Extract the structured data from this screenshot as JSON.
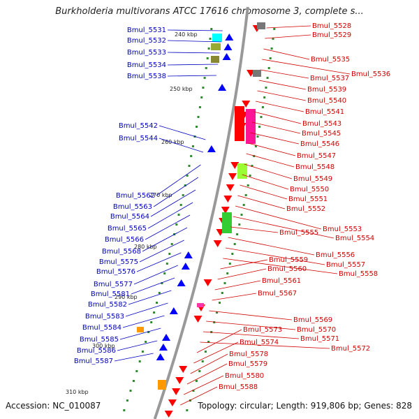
{
  "title": "Burkholderia multivorans ATCC 17616 chromosome 3, complete s...",
  "footer": {
    "accession": "Accession: NC_010087",
    "topology": "Topology: circular; Length: 919,806 bp; Genes: 828"
  },
  "colors": {
    "left_label": "#0000c0",
    "right_label": "#d00000",
    "outer_strand": "#0000ff",
    "inner_strand": "#ff0000",
    "backbone": "#999999"
  },
  "ticks": [
    "240 kbp",
    "250 kbp",
    "260 kbp",
    "270 kbp",
    "280 kbp",
    "290 kbp",
    "300 kbp",
    "310 kbp"
  ],
  "left_labels": [
    "Bmul_5531",
    "Bmul_5532",
    "Bmul_5533",
    "Bmul_5534",
    "Bmul_5538",
    "Bmul_5542",
    "Bmul_5544",
    "Bmul_5562",
    "Bmul_5563",
    "Bmul_5564",
    "Bmul_5565",
    "Bmul_5566",
    "Bmul_5568",
    "Bmul_5575",
    "Bmul_5576",
    "Bmul_5577",
    "Bmul_5581",
    "Bmul_5582",
    "Bmul_5583",
    "Bmul_5584",
    "Bmul_5585",
    "Bmul_5586",
    "Bmul_5587"
  ],
  "right_labels": [
    "Bmul_5528",
    "Bmul_5529",
    "Bmul_5535",
    "Bmul_5536",
    "Bmul_5537",
    "Bmul_5539",
    "Bmul_5540",
    "Bmul_5541",
    "Bmul_5543",
    "Bmul_5545",
    "Bmul_5546",
    "Bmul_5547",
    "Bmul_5548",
    "Bmul_5549",
    "Bmul_5550",
    "Bmul_5551",
    "Bmul_5552",
    "Bmul_5553",
    "Bmul_5554",
    "Bmul_5555",
    "Bmul_5556",
    "Bmul_5557",
    "Bmul_5558",
    "Bmul_5559",
    "Bmul_5560",
    "Bmul_5561",
    "Bmul_5567",
    "Bmul_5569",
    "Bmul_5570",
    "Bmul_5571",
    "Bmul_5572",
    "Bmul_5573",
    "Bmul_5574",
    "Bmul_5578",
    "Bmul_5579",
    "Bmul_5580",
    "Bmul_5588"
  ]
}
